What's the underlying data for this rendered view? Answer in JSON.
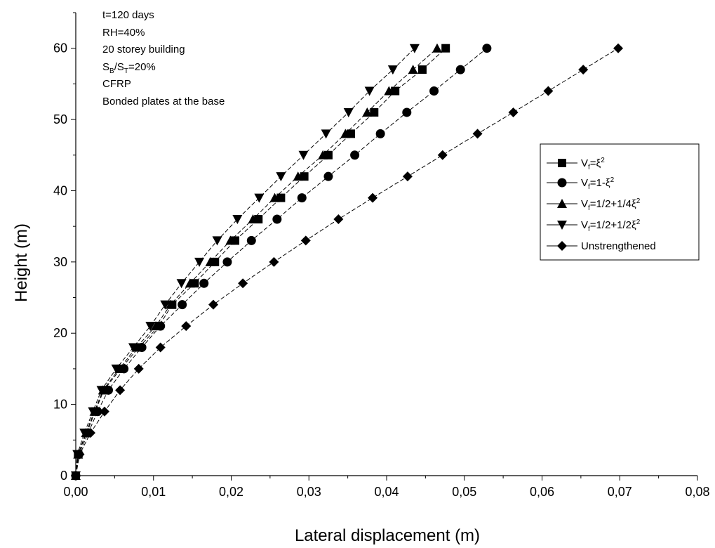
{
  "chart_data": {
    "type": "line",
    "xlabel": "Lateral displacement (m)",
    "ylabel": "Height (m)",
    "xlim": [
      0,
      0.08
    ],
    "ylim": [
      0,
      65
    ],
    "xticks": [
      "0,00",
      "0,01",
      "0,02",
      "0,03",
      "0,04",
      "0,05",
      "0,06",
      "0,07",
      "0,08"
    ],
    "yticks": [
      "0",
      "10",
      "20",
      "30",
      "40",
      "50",
      "60"
    ],
    "grid": false,
    "legend_position": "right",
    "annotations": {
      "line1": "t=120 days",
      "line2": "RH=40%",
      "line3": "20 storey building",
      "line4_parts": [
        "S",
        "B",
        "/S",
        "T",
        "=20%"
      ],
      "line5": "CFRP",
      "line6": "Bonded plates at the base"
    },
    "legend": [
      {
        "marker": "square",
        "parts": [
          "V",
          "f",
          "=ξ",
          "2",
          ""
        ]
      },
      {
        "marker": "circle",
        "parts": [
          "V",
          "f",
          "=1-ξ",
          "2",
          ""
        ]
      },
      {
        "marker": "triangle-up",
        "parts": [
          "V",
          "f",
          "=1/2+1/4ξ",
          "2",
          ""
        ]
      },
      {
        "marker": "triangle-down",
        "parts": [
          "V",
          "f",
          "=1/2+1/2ξ",
          "2",
          ""
        ]
      },
      {
        "marker": "diamond",
        "parts": [
          "Unstrengthened",
          "",
          "",
          "",
          ""
        ]
      }
    ],
    "series": [
      {
        "name": "Vf=ξ2",
        "marker": "square",
        "x": [
          0,
          0.0003,
          0.0014,
          0.0025,
          0.0036,
          0.0058,
          0.0081,
          0.0107,
          0.0124,
          0.0153,
          0.0179,
          0.0205,
          0.0235,
          0.0264,
          0.0294,
          0.0325,
          0.0354,
          0.0384,
          0.0411,
          0.0446,
          0.0476
        ],
        "y": [
          0,
          3,
          6,
          9,
          12,
          15,
          18,
          21,
          24,
          27,
          30,
          33,
          36,
          39,
          42,
          45,
          48,
          51,
          54,
          57,
          60
        ]
      },
      {
        "name": "Vf=1-ξ2",
        "marker": "circle",
        "x": [
          0,
          0.0004,
          0.0016,
          0.0028,
          0.0042,
          0.0062,
          0.0085,
          0.0109,
          0.0137,
          0.0165,
          0.0195,
          0.0226,
          0.0259,
          0.0291,
          0.0325,
          0.0359,
          0.0392,
          0.0426,
          0.0461,
          0.0495,
          0.0529
        ],
        "y": [
          0,
          3,
          6,
          9,
          12,
          15,
          18,
          21,
          24,
          27,
          30,
          33,
          36,
          39,
          42,
          45,
          48,
          51,
          54,
          57,
          60
        ]
      },
      {
        "name": "Vf=1/2+1/4ξ2",
        "marker": "triangle-up",
        "x": [
          0,
          0.0003,
          0.0013,
          0.0024,
          0.0035,
          0.0056,
          0.0078,
          0.0103,
          0.0122,
          0.0147,
          0.0173,
          0.0199,
          0.0228,
          0.0256,
          0.0286,
          0.0318,
          0.0347,
          0.0375,
          0.0403,
          0.0434,
          0.0465
        ],
        "y": [
          0,
          3,
          6,
          9,
          12,
          15,
          18,
          21,
          24,
          27,
          30,
          33,
          36,
          39,
          42,
          45,
          48,
          51,
          54,
          57,
          60
        ]
      },
      {
        "name": "Vf=1/2+1/2ξ2",
        "marker": "triangle-down",
        "x": [
          0,
          0.0002,
          0.0011,
          0.0022,
          0.0033,
          0.0052,
          0.0074,
          0.0096,
          0.0115,
          0.0136,
          0.0159,
          0.0182,
          0.0208,
          0.0236,
          0.0264,
          0.0293,
          0.0322,
          0.0351,
          0.0378,
          0.0408,
          0.0436
        ],
        "y": [
          0,
          3,
          6,
          9,
          12,
          15,
          18,
          21,
          24,
          27,
          30,
          33,
          36,
          39,
          42,
          45,
          48,
          51,
          54,
          57,
          60
        ]
      },
      {
        "name": "Unstrengthened",
        "marker": "diamond",
        "x": [
          0,
          0.0005,
          0.0019,
          0.0037,
          0.0057,
          0.0081,
          0.0109,
          0.0142,
          0.0177,
          0.0215,
          0.0255,
          0.0296,
          0.0338,
          0.0382,
          0.0427,
          0.0472,
          0.0517,
          0.0563,
          0.0608,
          0.0653,
          0.0698
        ],
        "y": [
          0,
          3,
          6,
          9,
          12,
          15,
          18,
          21,
          24,
          27,
          30,
          33,
          36,
          39,
          42,
          45,
          48,
          51,
          54,
          57,
          60
        ]
      }
    ]
  }
}
